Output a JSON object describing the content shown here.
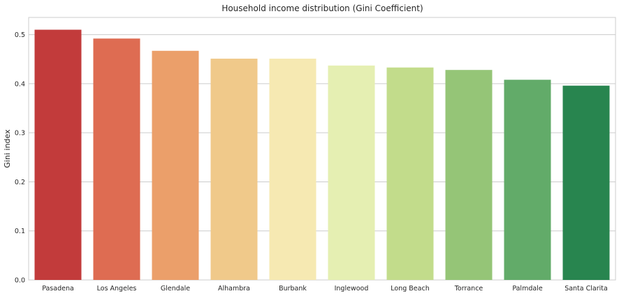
{
  "chart_data": {
    "type": "bar",
    "title": "Household income distribution (Gini Coefficient)",
    "xlabel": "",
    "ylabel": "Gini index",
    "categories": [
      "Pasadena",
      "Los Angeles",
      "Glendale",
      "Alhambra",
      "Burbank",
      "Inglewood",
      "Long Beach",
      "Torrance",
      "Palmdale",
      "Santa Clarita"
    ],
    "values": [
      0.51,
      0.492,
      0.467,
      0.451,
      0.451,
      0.437,
      0.433,
      0.428,
      0.408,
      0.396
    ],
    "ylim": [
      0,
      0.535
    ],
    "yticks": [
      0.0,
      0.1,
      0.2,
      0.3,
      0.4,
      0.5
    ],
    "ytick_labels": [
      "0.0",
      "0.1",
      "0.2",
      "0.3",
      "0.4",
      "0.5"
    ],
    "colors": [
      "#c23b3b",
      "#de6c52",
      "#eb9f6a",
      "#f0c98a",
      "#f6e9b2",
      "#e5efb2",
      "#c2dc8b",
      "#95c577",
      "#62ab69",
      "#28854f"
    ],
    "grid": true,
    "grid_axis": "y",
    "legend": "none"
  }
}
